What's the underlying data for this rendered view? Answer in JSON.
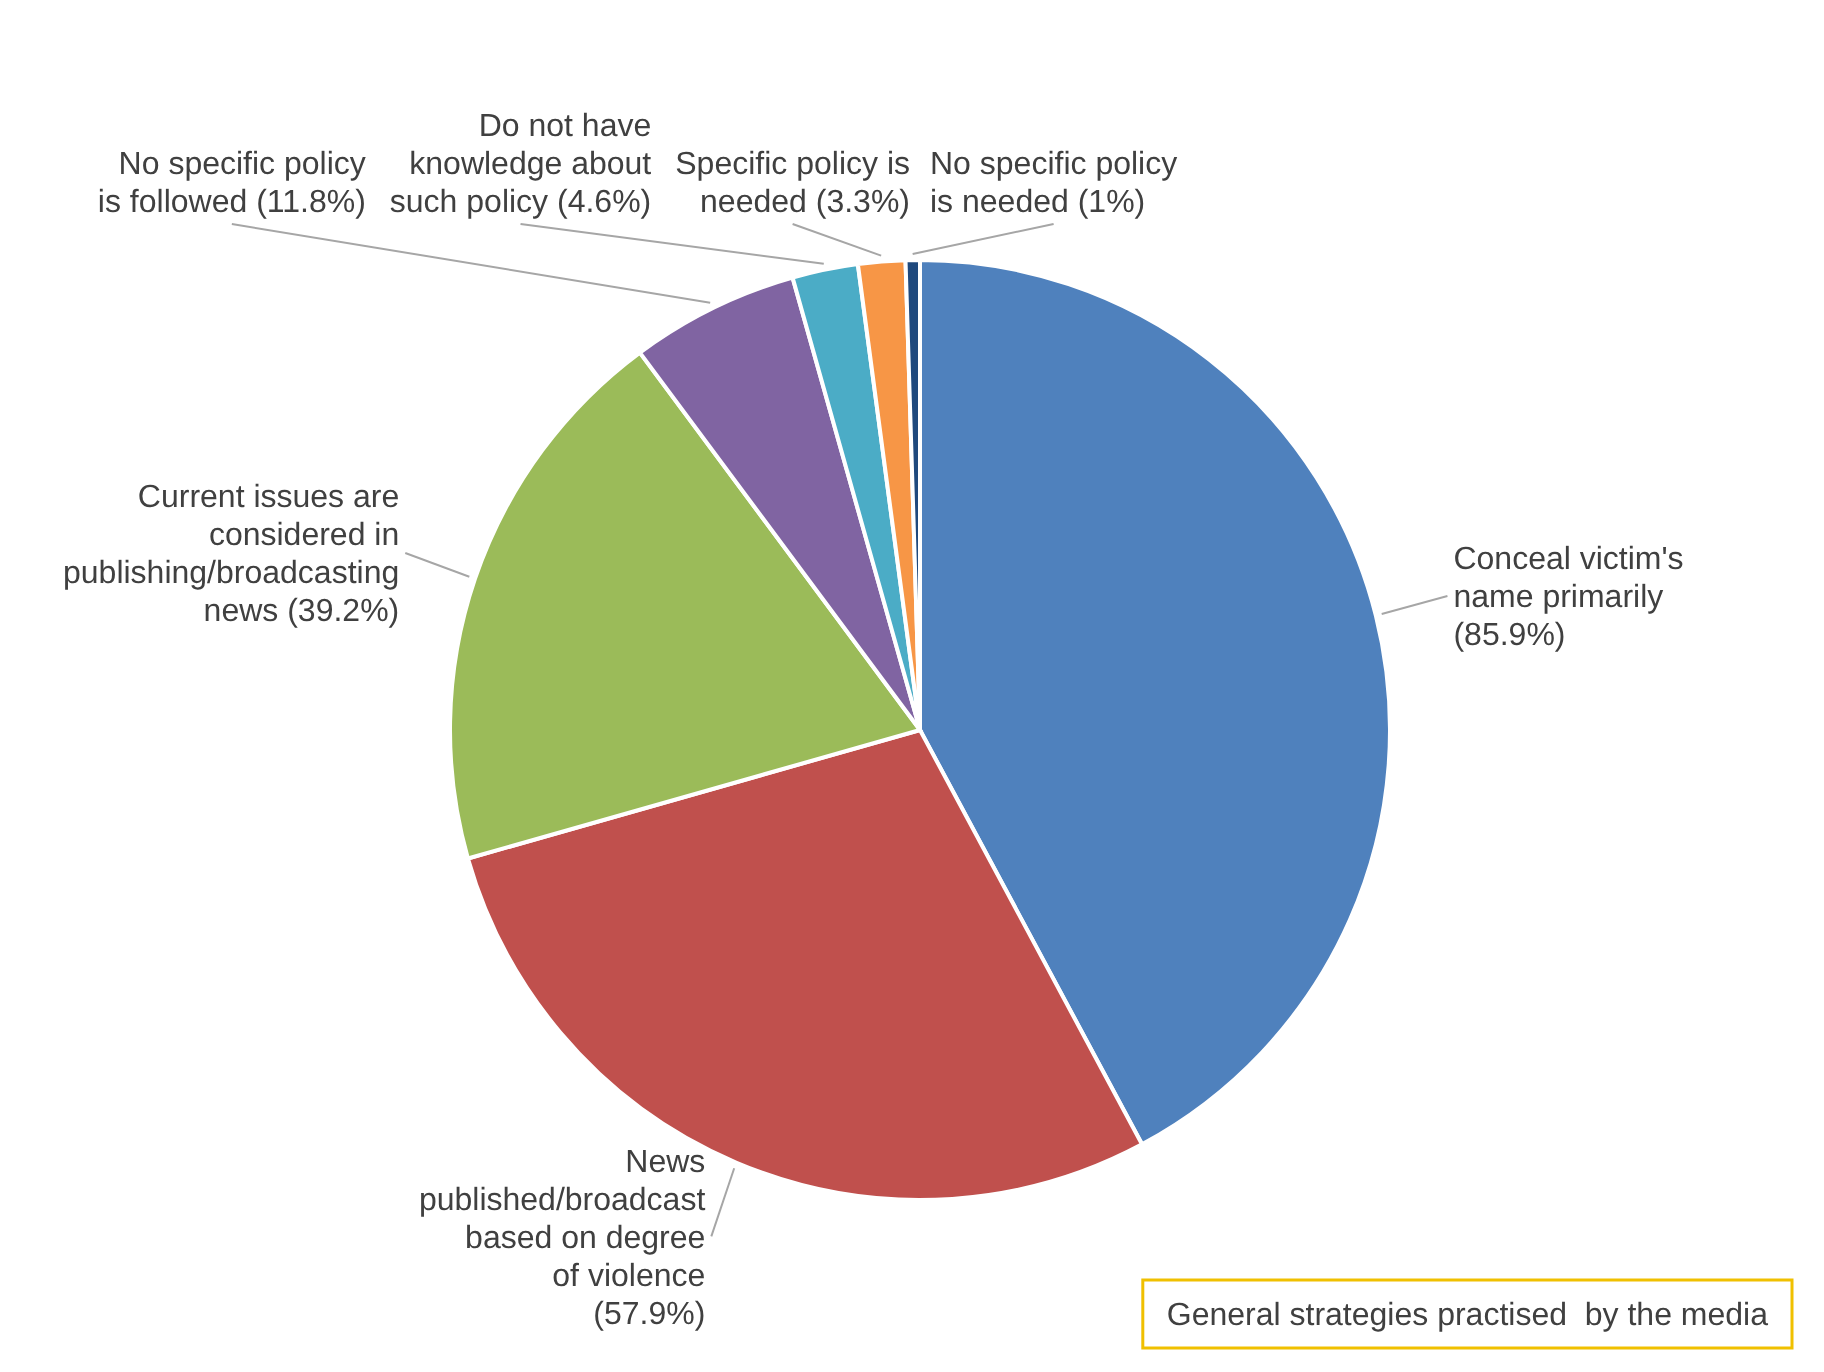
{
  "chart_data": {
    "type": "pie",
    "title": "General strategies practised  by the media",
    "categories": [
      "Conceal victim's name primarily",
      "News published/broadcast based on degree of violence",
      "Current issues are considered in publishing/broadcasting news",
      "No specific policy is followed",
      "Do not have knowledge about such policy",
      "Specific policy is needed",
      "No specific policy is needed"
    ],
    "values": [
      85.9,
      57.9,
      39.2,
      11.8,
      4.6,
      3.3,
      1
    ],
    "colors": [
      "#4f81bd",
      "#c0504d",
      "#9bbb59",
      "#8064a2",
      "#4bacc6",
      "#f79646",
      "#1f497d"
    ],
    "value_labels": [
      "(85.9%)",
      "(57.9%)",
      "(39.2%)",
      "(11.8%)",
      "(4.6%)",
      "(3.3%)",
      "(1%)"
    ]
  }
}
